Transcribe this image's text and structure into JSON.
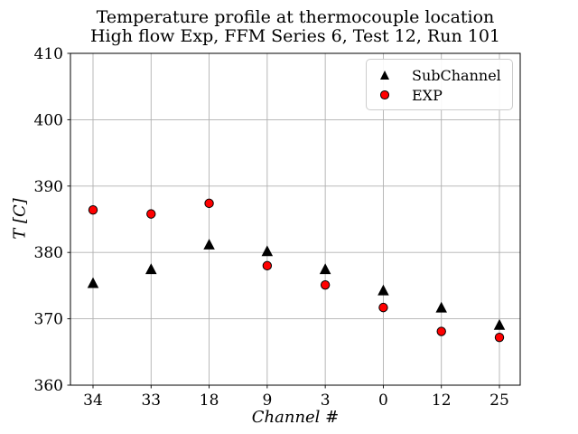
{
  "title": {
    "line1": "Temperature profile at thermocouple location",
    "line2": "High flow Exp, FFM Series 6, Test 12, Run 101"
  },
  "chart_data": {
    "type": "scatter",
    "title": "Temperature profile at thermocouple location\nHigh flow Exp, FFM Series 6, Test 12, Run 101",
    "xlabel": "Channel #",
    "ylabel": "T [C]",
    "categories": [
      "34",
      "33",
      "18",
      "9",
      "3",
      "0",
      "12",
      "25"
    ],
    "series": [
      {
        "name": "SubChannel",
        "marker": "triangle",
        "color": "#000000",
        "edge_color": "#000000",
        "values": [
          375.3,
          377.4,
          381.1,
          380.1,
          377.4,
          374.2,
          371.6,
          369.0
        ]
      },
      {
        "name": "EXP",
        "marker": "circle",
        "color": "#ff0000",
        "edge_color": "#000000",
        "values": [
          386.4,
          385.8,
          387.4,
          378.0,
          375.1,
          371.7,
          368.1,
          367.2
        ]
      }
    ],
    "ylim": [
      360,
      410
    ],
    "y_ticks": [
      360,
      370,
      380,
      390,
      400,
      410
    ],
    "grid": true,
    "grid_color": "#b0b0b0",
    "legend_position": "upper right",
    "background": "#ffffff"
  }
}
